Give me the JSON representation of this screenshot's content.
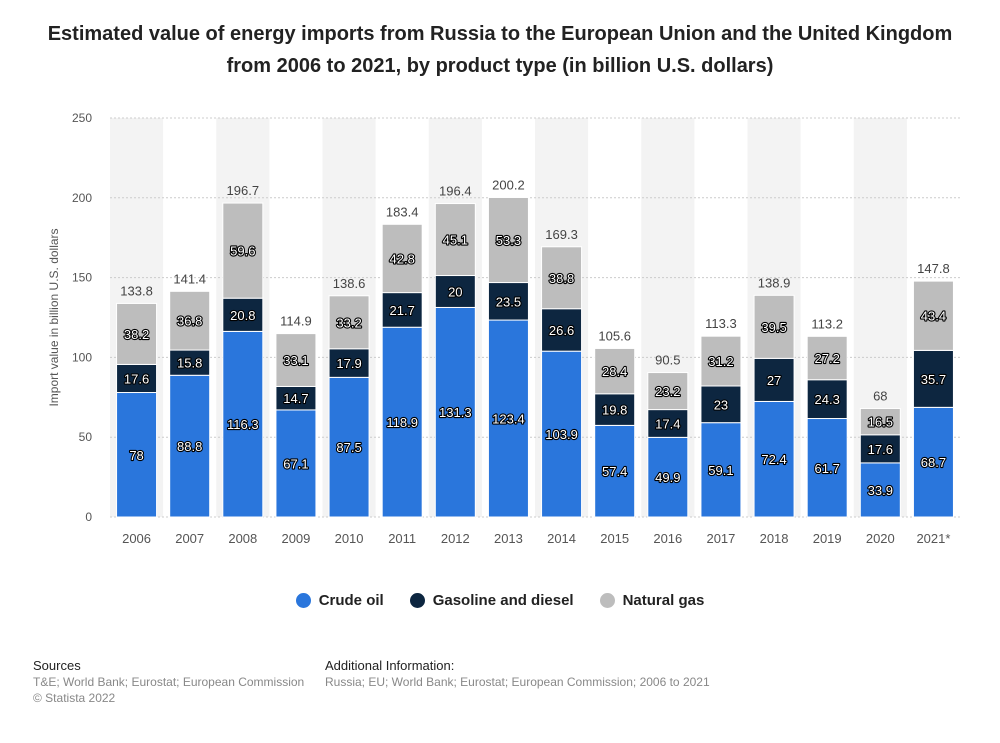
{
  "title": "Estimated value of energy imports from Russia to the European Union and the United Kingdom from 2006 to 2021, by product type (in billion U.S. dollars)",
  "colors": {
    "crude": "#2a76dc",
    "gasoline": "#0d2640",
    "gas": "#bdbdbd",
    "axis_text": "#555555",
    "grid": "#cccccc",
    "band": "#f3f3f3"
  },
  "chart_data": {
    "type": "bar",
    "stacked": true,
    "categories": [
      "2006",
      "2007",
      "2008",
      "2009",
      "2010",
      "2011",
      "2012",
      "2013",
      "2014",
      "2015",
      "2016",
      "2017",
      "2018",
      "2019",
      "2020",
      "2021*"
    ],
    "series": [
      {
        "name": "Crude oil",
        "color": "#2a76dc",
        "values": [
          78,
          88.8,
          116.3,
          67.1,
          87.5,
          118.9,
          131.3,
          123.4,
          103.9,
          57.4,
          49.9,
          59.1,
          72.4,
          61.7,
          33.9,
          68.7
        ]
      },
      {
        "name": "Gasoline and diesel",
        "color": "#0d2640",
        "values": [
          17.6,
          15.8,
          20.8,
          14.7,
          17.9,
          21.7,
          20,
          23.5,
          26.6,
          19.8,
          17.4,
          23,
          27,
          24.3,
          17.6,
          35.7
        ]
      },
      {
        "name": "Natural gas",
        "color": "#bdbdbd",
        "values": [
          38.2,
          36.8,
          59.6,
          33.1,
          33.2,
          42.8,
          45.1,
          53.3,
          38.8,
          28.4,
          23.2,
          31.2,
          39.5,
          27.2,
          16.5,
          43.4
        ]
      }
    ],
    "totals": [
      133.8,
      141.4,
      196.7,
      114.9,
      138.6,
      183.4,
      196.4,
      200.2,
      169.3,
      105.6,
      90.5,
      113.3,
      138.9,
      113.2,
      68,
      147.8
    ],
    "total_labels": [
      "133.8",
      "141.4",
      "196.7",
      "114.9",
      "138.6",
      "183.4",
      "196.4",
      "200.2",
      "169.3",
      "105.6",
      "90.5",
      "113.3",
      "138.9",
      "113.2",
      "68",
      "147.8"
    ],
    "ylabel": "Import value in billion U.S. dollars",
    "xlabel": "",
    "ylim": [
      0,
      250
    ],
    "yticks": [
      0,
      50,
      100,
      150,
      200,
      250
    ],
    "grid": true,
    "legend_position": "bottom"
  },
  "legend": {
    "crude": "Crude oil",
    "gasoline": "Gasoline and diesel",
    "gas": "Natural gas"
  },
  "footer": {
    "sources_heading": "Sources",
    "sources_text": "T&E; World Bank; Eurostat; European Commission",
    "copyright": "© Statista 2022",
    "info_heading": "Additional Information:",
    "info_text": "Russia; EU; World Bank; Eurostat; European Commission; 2006 to 2021"
  }
}
